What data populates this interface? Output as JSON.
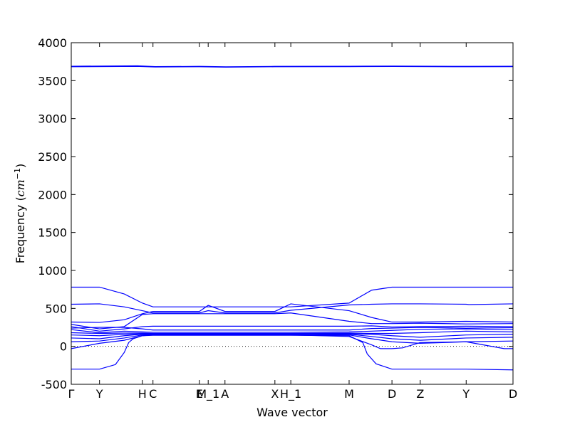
{
  "chart_data": {
    "type": "line",
    "title": "",
    "xlabel": "Wave vector",
    "ylabel_parts": {
      "prefix": "Frequency (",
      "unit_base": "cm",
      "unit_exp": "−1",
      "suffix": ")"
    },
    "ylim": [
      -500,
      4000
    ],
    "xlim": [
      0,
      1
    ],
    "yticks": [
      -500,
      0,
      500,
      1000,
      1500,
      2000,
      2500,
      3000,
      3500,
      4000
    ],
    "xticks": [
      {
        "pos": 0.0,
        "label": "Γ"
      },
      {
        "pos": 0.064,
        "label": "Y"
      },
      {
        "pos": 0.161,
        "label": "H"
      },
      {
        "pos": 0.185,
        "label": "C"
      },
      {
        "pos": 0.29,
        "label": "E"
      },
      {
        "pos": 0.31,
        "label": "M_1"
      },
      {
        "pos": 0.348,
        "label": "A"
      },
      {
        "pos": 0.461,
        "label": "X"
      },
      {
        "pos": 0.497,
        "label": "H_1"
      },
      {
        "pos": 0.629,
        "label": "M"
      },
      {
        "pos": 0.726,
        "label": "D"
      },
      {
        "pos": 0.79,
        "label": "Z"
      },
      {
        "pos": 0.894,
        "label": "Y"
      },
      {
        "pos": 1.0,
        "label": "D"
      }
    ],
    "zero_line": true,
    "line_color": "#0000ff",
    "series": [
      {
        "points": [
          [
            0,
            3690
          ],
          [
            0.15,
            3695
          ],
          [
            0.19,
            3685
          ],
          [
            0.29,
            3688
          ],
          [
            0.35,
            3683
          ],
          [
            0.46,
            3688
          ],
          [
            0.63,
            3690
          ],
          [
            0.73,
            3692
          ],
          [
            0.9,
            3688
          ],
          [
            1.0,
            3690
          ]
        ]
      },
      {
        "points": [
          [
            0,
            3683
          ],
          [
            0.15,
            3688
          ],
          [
            0.19,
            3680
          ],
          [
            0.29,
            3683
          ],
          [
            0.35,
            3678
          ],
          [
            0.46,
            3683
          ],
          [
            0.63,
            3685
          ],
          [
            0.73,
            3687
          ],
          [
            0.9,
            3683
          ],
          [
            1.0,
            3685
          ]
        ]
      },
      {
        "points": [
          [
            0,
            780
          ],
          [
            0.064,
            780
          ],
          [
            0.12,
            690
          ],
          [
            0.161,
            570
          ],
          [
            0.185,
            520
          ],
          [
            0.29,
            520
          ],
          [
            0.31,
            520
          ],
          [
            0.348,
            520
          ],
          [
            0.461,
            520
          ],
          [
            0.497,
            520
          ],
          [
            0.629,
            570
          ],
          [
            0.68,
            740
          ],
          [
            0.726,
            780
          ],
          [
            0.79,
            780
          ],
          [
            0.894,
            780
          ],
          [
            1.0,
            780
          ]
        ]
      },
      {
        "points": [
          [
            0,
            555
          ],
          [
            0.064,
            560
          ],
          [
            0.12,
            520
          ],
          [
            0.161,
            470
          ],
          [
            0.185,
            440
          ],
          [
            0.29,
            440
          ],
          [
            0.31,
            470
          ],
          [
            0.348,
            440
          ],
          [
            0.461,
            440
          ],
          [
            0.497,
            475
          ],
          [
            0.629,
            545
          ],
          [
            0.68,
            555
          ],
          [
            0.726,
            560
          ],
          [
            0.79,
            560
          ],
          [
            0.894,
            555
          ],
          [
            0.9,
            550
          ],
          [
            1.0,
            560
          ]
        ]
      },
      {
        "points": [
          [
            0,
            320
          ],
          [
            0.064,
            315
          ],
          [
            0.12,
            350
          ],
          [
            0.161,
            430
          ],
          [
            0.185,
            460
          ],
          [
            0.29,
            460
          ],
          [
            0.31,
            540
          ],
          [
            0.348,
            460
          ],
          [
            0.461,
            460
          ],
          [
            0.497,
            560
          ],
          [
            0.629,
            470
          ],
          [
            0.68,
            380
          ],
          [
            0.726,
            320
          ],
          [
            0.79,
            320
          ],
          [
            0.894,
            330
          ],
          [
            1.0,
            320
          ]
        ]
      },
      {
        "points": [
          [
            0,
            290
          ],
          [
            0.064,
            230
          ],
          [
            0.12,
            260
          ],
          [
            0.161,
            420
          ],
          [
            0.185,
            430
          ],
          [
            0.29,
            430
          ],
          [
            0.31,
            430
          ],
          [
            0.348,
            430
          ],
          [
            0.461,
            430
          ],
          [
            0.497,
            440
          ],
          [
            0.629,
            330
          ],
          [
            0.68,
            300
          ],
          [
            0.726,
            300
          ],
          [
            0.79,
            305
          ],
          [
            0.894,
            295
          ],
          [
            1.0,
            300
          ]
        ]
      },
      {
        "points": [
          [
            0,
            260
          ],
          [
            0.064,
            200
          ],
          [
            0.12,
            230
          ],
          [
            0.161,
            260
          ],
          [
            0.185,
            265
          ],
          [
            0.29,
            265
          ],
          [
            0.31,
            265
          ],
          [
            0.348,
            265
          ],
          [
            0.461,
            265
          ],
          [
            0.497,
            265
          ],
          [
            0.629,
            265
          ],
          [
            0.68,
            270
          ],
          [
            0.726,
            255
          ],
          [
            0.79,
            260
          ],
          [
            0.894,
            265
          ],
          [
            1.0,
            260
          ]
        ]
      },
      {
        "points": [
          [
            0,
            240
          ],
          [
            0.064,
            250
          ],
          [
            0.12,
            250
          ],
          [
            0.161,
            230
          ],
          [
            0.185,
            215
          ],
          [
            0.29,
            215
          ],
          [
            0.31,
            215
          ],
          [
            0.348,
            215
          ],
          [
            0.461,
            215
          ],
          [
            0.497,
            215
          ],
          [
            0.629,
            215
          ],
          [
            0.68,
            235
          ],
          [
            0.726,
            240
          ],
          [
            0.79,
            250
          ],
          [
            0.894,
            240
          ],
          [
            1.0,
            245
          ]
        ]
      },
      {
        "points": [
          [
            0,
            220
          ],
          [
            0.064,
            180
          ],
          [
            0.12,
            200
          ],
          [
            0.161,
            190
          ],
          [
            0.185,
            185
          ],
          [
            0.29,
            185
          ],
          [
            0.31,
            185
          ],
          [
            0.348,
            185
          ],
          [
            0.461,
            185
          ],
          [
            0.497,
            185
          ],
          [
            0.629,
            190
          ],
          [
            0.68,
            200
          ],
          [
            0.726,
            210
          ],
          [
            0.79,
            225
          ],
          [
            0.894,
            230
          ],
          [
            1.0,
            220
          ]
        ]
      },
      {
        "points": [
          [
            0,
            180
          ],
          [
            0.064,
            170
          ],
          [
            0.12,
            175
          ],
          [
            0.161,
            175
          ],
          [
            0.185,
            170
          ],
          [
            0.29,
            170
          ],
          [
            0.31,
            170
          ],
          [
            0.348,
            170
          ],
          [
            0.461,
            170
          ],
          [
            0.497,
            170
          ],
          [
            0.629,
            175
          ],
          [
            0.68,
            170
          ],
          [
            0.726,
            170
          ],
          [
            0.79,
            180
          ],
          [
            0.894,
            200
          ],
          [
            1.0,
            190
          ]
        ]
      },
      {
        "points": [
          [
            0,
            150
          ],
          [
            0.064,
            140
          ],
          [
            0.12,
            160
          ],
          [
            0.161,
            165
          ],
          [
            0.185,
            165
          ],
          [
            0.29,
            165
          ],
          [
            0.31,
            165
          ],
          [
            0.348,
            165
          ],
          [
            0.461,
            165
          ],
          [
            0.497,
            165
          ],
          [
            0.629,
            165
          ],
          [
            0.68,
            160
          ],
          [
            0.726,
            140
          ],
          [
            0.79,
            120
          ],
          [
            0.894,
            150
          ],
          [
            1.0,
            160
          ]
        ]
      },
      {
        "points": [
          [
            0,
            110
          ],
          [
            0.064,
            100
          ],
          [
            0.12,
            140
          ],
          [
            0.161,
            160
          ],
          [
            0.185,
            160
          ],
          [
            0.29,
            160
          ],
          [
            0.31,
            160
          ],
          [
            0.348,
            160
          ],
          [
            0.461,
            160
          ],
          [
            0.497,
            160
          ],
          [
            0.629,
            160
          ],
          [
            0.68,
            130
          ],
          [
            0.726,
            100
          ],
          [
            0.79,
            80
          ],
          [
            0.894,
            110
          ],
          [
            1.0,
            120
          ]
        ]
      },
      {
        "points": [
          [
            0,
            60
          ],
          [
            0.064,
            70
          ],
          [
            0.12,
            110
          ],
          [
            0.161,
            150
          ],
          [
            0.185,
            155
          ],
          [
            0.29,
            155
          ],
          [
            0.31,
            155
          ],
          [
            0.348,
            155
          ],
          [
            0.461,
            155
          ],
          [
            0.497,
            155
          ],
          [
            0.629,
            150
          ],
          [
            0.68,
            100
          ],
          [
            0.726,
            60
          ],
          [
            0.79,
            40
          ],
          [
            0.894,
            60
          ],
          [
            1.0,
            70
          ]
        ]
      },
      {
        "points": [
          [
            0,
            -30
          ],
          [
            0.064,
            40
          ],
          [
            0.12,
            80
          ],
          [
            0.161,
            140
          ],
          [
            0.185,
            150
          ],
          [
            0.29,
            150
          ],
          [
            0.31,
            150
          ],
          [
            0.348,
            150
          ],
          [
            0.461,
            150
          ],
          [
            0.497,
            150
          ],
          [
            0.629,
            130
          ],
          [
            0.68,
            20
          ],
          [
            0.7,
            -30
          ],
          [
            0.726,
            -30
          ],
          [
            0.75,
            -20
          ],
          [
            0.79,
            50
          ],
          [
            0.894,
            60
          ],
          [
            0.98,
            -30
          ],
          [
            1.0,
            -30
          ]
        ]
      },
      {
        "points": [
          [
            0,
            -300
          ],
          [
            0.064,
            -300
          ],
          [
            0.1,
            -240
          ],
          [
            0.12,
            -80
          ],
          [
            0.13,
            50
          ],
          [
            0.14,
            100
          ],
          [
            0.161,
            140
          ],
          [
            0.185,
            145
          ],
          [
            0.29,
            145
          ],
          [
            0.461,
            145
          ],
          [
            0.497,
            145
          ],
          [
            0.629,
            140
          ],
          [
            0.66,
            50
          ],
          [
            0.67,
            -100
          ],
          [
            0.69,
            -230
          ],
          [
            0.726,
            -300
          ],
          [
            0.79,
            -300
          ],
          [
            0.894,
            -300
          ],
          [
            1.0,
            -310
          ]
        ]
      }
    ]
  }
}
